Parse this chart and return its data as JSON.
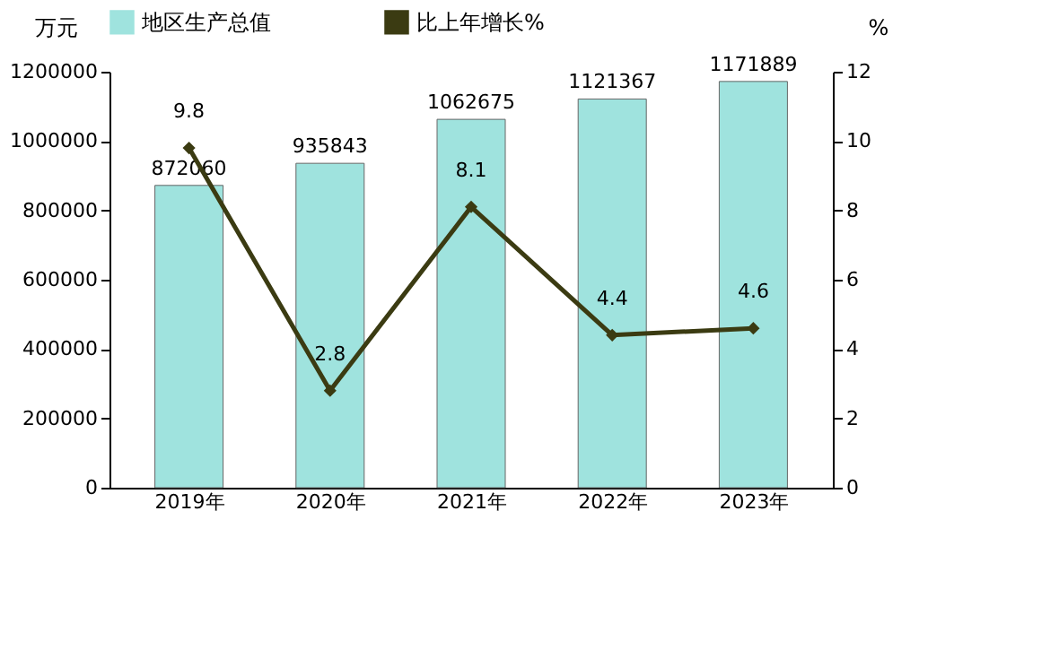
{
  "chart_data": {
    "type": "bar",
    "categories": [
      "2019年",
      "2020年",
      "2021年",
      "2022年",
      "2023年"
    ],
    "series": [
      {
        "name": "地区生产总值",
        "color": "#9fe3de",
        "values": [
          872060,
          935843,
          1062675,
          1121367,
          1171889
        ]
      },
      {
        "name": "比上年增长%",
        "type": "line",
        "axis": "y2",
        "color": "#3b3b12",
        "values": [
          9.8,
          2.8,
          8.1,
          4.4,
          4.6
        ]
      }
    ],
    "ylabel": "万元",
    "y2label": "%",
    "ylim": [
      0,
      1200000
    ],
    "yticks": [
      0,
      200000,
      400000,
      600000,
      800000,
      1000000,
      1200000
    ],
    "y2lim": [
      0,
      12
    ],
    "y2ticks": [
      0,
      2,
      4,
      6,
      8,
      10,
      12
    ],
    "data_labels": true,
    "legend": "top",
    "marker": "diamond",
    "grid": false
  }
}
